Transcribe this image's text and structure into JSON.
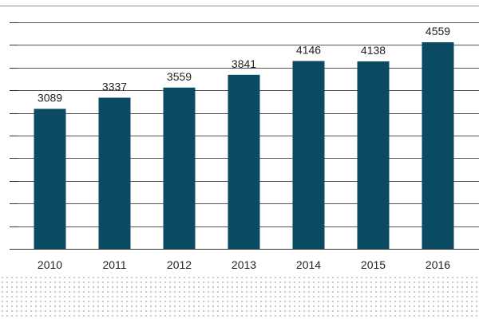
{
  "chart_data": {
    "type": "bar",
    "categories": [
      "2010",
      "2011",
      "2012",
      "2013",
      "2014",
      "2015",
      "2016"
    ],
    "values": [
      3089,
      3337,
      3559,
      3841,
      4146,
      4138,
      4559
    ],
    "data_labels": [
      "3089",
      "3337",
      "3559",
      "3841",
      "4146",
      "4138",
      "4559"
    ],
    "title": "",
    "xlabel": "",
    "ylabel": "",
    "ylim": [
      0,
      5000
    ],
    "grid": true,
    "legend": "none",
    "bar_color": "#0b4a63",
    "gridline_color": "#555555"
  }
}
